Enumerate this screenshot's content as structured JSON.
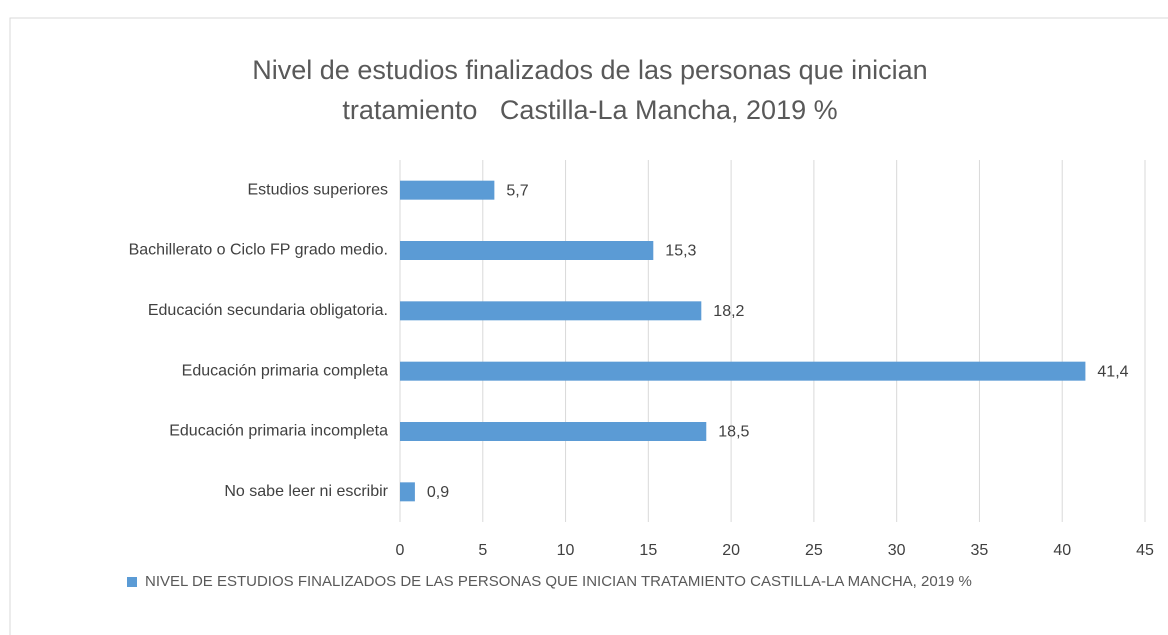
{
  "chart_data": {
    "type": "bar",
    "orientation": "horizontal",
    "title": "Nivel de estudios finalizados de las personas que inician tratamiento   Castilla-La Mancha, 2019 %",
    "categories": [
      "Estudios superiores",
      "Bachillerato o Ciclo FP grado medio.",
      "Educación secundaria obligatoria.",
      "Educación primaria completa",
      "Educación primaria incompleta",
      "No sabe leer ni escribir"
    ],
    "series": [
      {
        "name": "NIVEL DE ESTUDIOS FINALIZADOS DE LAS PERSONAS QUE INICIAN TRATAMIENTO   CASTILLA-LA MANCHA, 2019 %",
        "color": "#5b9bd5",
        "values": [
          5.7,
          15.3,
          18.2,
          41.4,
          18.5,
          0.9
        ],
        "value_labels": [
          "5,7",
          "15,3",
          "18,2",
          "41,4",
          "18,5",
          "0,9"
        ]
      }
    ],
    "xlim": [
      0,
      45
    ],
    "xticks": [
      0,
      5,
      10,
      15,
      20,
      25,
      30,
      35,
      40,
      45
    ],
    "grid": true,
    "legend": "bottom"
  }
}
